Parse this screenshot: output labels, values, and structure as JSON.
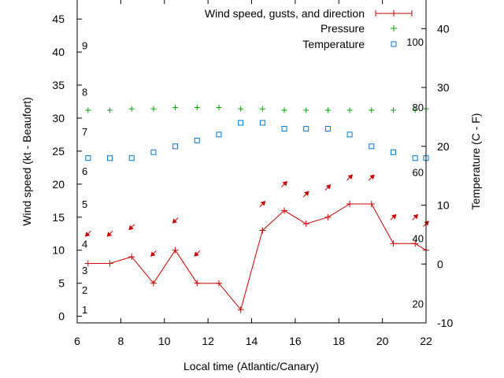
{
  "chart_data": {
    "type": "line",
    "title": "",
    "xlabel": "Local time (Atlantic/Canary)",
    "ylabel": "Wind speed (kt - Beaufort)",
    "y2label": "Temperature (C - F)",
    "xlim": [
      6,
      22
    ],
    "ylim": [
      -1,
      48
    ],
    "y2lim": [
      -10,
      45
    ],
    "x_ticks": [
      6,
      8,
      10,
      12,
      14,
      16,
      18,
      20,
      22
    ],
    "y_ticks": [
      0,
      5,
      10,
      15,
      20,
      25,
      30,
      35,
      40,
      45
    ],
    "y2_ticks": [
      -10,
      0,
      10,
      20,
      30,
      40
    ],
    "beaufort_labels": [
      {
        "label": "1",
        "kt": 1
      },
      {
        "label": "2",
        "kt": 4
      },
      {
        "label": "3",
        "kt": 7
      },
      {
        "label": "4",
        "kt": 11
      },
      {
        "label": "5",
        "kt": 17
      },
      {
        "label": "6",
        "kt": 22
      },
      {
        "label": "7",
        "kt": 28
      },
      {
        "label": "8",
        "kt": 34
      },
      {
        "label": "9",
        "kt": 41
      }
    ],
    "fahrenheit_labels": [
      {
        "label": "20",
        "c": -6.7
      },
      {
        "label": "40",
        "c": 4.4
      },
      {
        "label": "60",
        "c": 15.6
      },
      {
        "label": "80",
        "c": 26.7
      },
      {
        "label": "100",
        "c": 37.8
      }
    ],
    "legend": {
      "position": "top-right",
      "entries": [
        {
          "label": "Wind speed, gusts, and direction",
          "color": "#cc0000",
          "marker": "line-plus"
        },
        {
          "label": "Pressure",
          "color": "#00aa00",
          "marker": "plus"
        },
        {
          "label": "Temperature",
          "color": "#0077cc",
          "marker": "open-square"
        }
      ]
    },
    "series": [
      {
        "name": "Wind speed, gusts, and direction",
        "color": "#cc0000",
        "axis": "y",
        "x": [
          6.5,
          7.5,
          8.5,
          9.5,
          10.5,
          11.5,
          12.5,
          13.5,
          14.5,
          15.5,
          16.5,
          17.5,
          18.5,
          19.5,
          20.5,
          21.5,
          22
        ],
        "values": [
          8,
          8,
          9,
          5,
          10,
          5,
          5,
          1,
          13,
          16,
          14,
          15,
          17,
          17,
          11,
          11,
          10
        ]
      },
      {
        "name": "Pressure",
        "color": "#00aa00",
        "axis": "y",
        "x": [
          6.5,
          7.5,
          8.5,
          9.5,
          10.5,
          11.5,
          12.5,
          13.5,
          14.5,
          15.5,
          16.5,
          17.5,
          18.5,
          19.5,
          20.5,
          21.5,
          22
        ],
        "values": [
          31.2,
          31.2,
          31.4,
          31.4,
          31.6,
          31.6,
          31.6,
          31.4,
          31.4,
          31.2,
          31.2,
          31.2,
          31.2,
          31.2,
          31.2,
          31.2,
          31.4
        ]
      },
      {
        "name": "Temperature",
        "color": "#0077cc",
        "axis": "y2",
        "x": [
          6.5,
          7.5,
          8.5,
          9.5,
          10.5,
          11.5,
          12.5,
          13.5,
          14.5,
          15.5,
          16.5,
          17.5,
          18.5,
          19.5,
          20.5,
          21.5,
          22
        ],
        "values": [
          18,
          18,
          18,
          19,
          20,
          21,
          22,
          24,
          24,
          23,
          23,
          23,
          22,
          20,
          19,
          18,
          18
        ]
      }
    ],
    "wind_direction_arrows": {
      "color": "#cc0000",
      "x": [
        6.5,
        7.5,
        8.5,
        9.5,
        10.5,
        11.5,
        14.5,
        15.5,
        16.5,
        17.5,
        18.5,
        19.5,
        20.5,
        21.5,
        22
      ],
      "y": [
        12.5,
        12.5,
        13.5,
        9.5,
        14.5,
        9.5,
        17,
        20,
        18.5,
        19.5,
        21,
        21,
        15,
        15,
        14
      ],
      "pointing_deg": [
        135,
        135,
        135,
        135,
        135,
        135,
        315,
        315,
        315,
        315,
        315,
        315,
        315,
        315,
        315
      ]
    }
  }
}
